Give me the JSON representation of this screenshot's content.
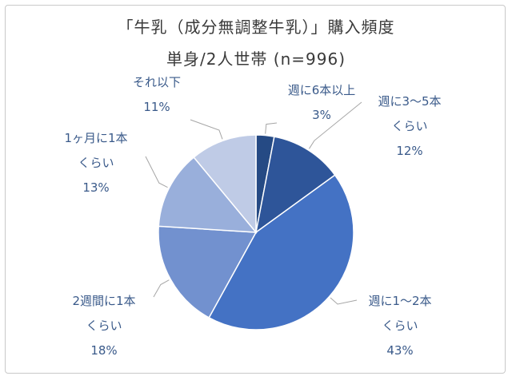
{
  "chart_data": {
    "type": "pie",
    "title": "「牛乳（成分無調整牛乳）」購入頻度",
    "subtitle": "単身/2人世帯 (n=996)",
    "slices": [
      {
        "lines": [
          "週に6本以上"
        ],
        "value": 3,
        "value_label": "3%",
        "color": "#254a84"
      },
      {
        "lines": [
          "週に3～5本",
          "くらい"
        ],
        "value": 12,
        "value_label": "12%",
        "color": "#2e5599"
      },
      {
        "lines": [
          "週に1～2本",
          "くらい"
        ],
        "value": 43,
        "value_label": "43%",
        "color": "#4472c4"
      },
      {
        "lines": [
          "2週間に1本",
          "くらい"
        ],
        "value": 18,
        "value_label": "18%",
        "color": "#7291cf"
      },
      {
        "lines": [
          "1ヶ月に1本",
          "くらい"
        ],
        "value": 13,
        "value_label": "13%",
        "color": "#99afdb"
      },
      {
        "lines": [
          "それ以下"
        ],
        "value": 11,
        "value_label": "11%",
        "color": "#bfcbe6"
      }
    ]
  }
}
